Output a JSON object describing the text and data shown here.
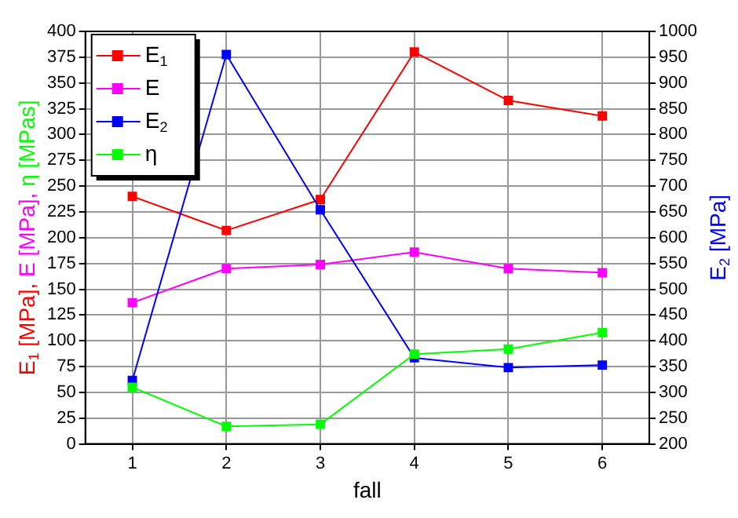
{
  "chart_data": {
    "type": "line",
    "xlabel": "fall",
    "ylabel": "E$_{1}$ [MPa], E [MPa], η [MPas]",
    "y2label": "E$_{2}$ [MPa]",
    "x": [
      1,
      2,
      3,
      4,
      5,
      6
    ],
    "xlim": [
      0.5,
      6.5
    ],
    "xticks": [
      1,
      2,
      3,
      4,
      5,
      6
    ],
    "ylim": [
      0,
      400
    ],
    "yticks": [
      0,
      25,
      50,
      75,
      100,
      125,
      150,
      175,
      200,
      225,
      250,
      275,
      300,
      325,
      350,
      375,
      400
    ],
    "y2lim": [
      200,
      1000
    ],
    "y2ticks": [
      200,
      250,
      300,
      350,
      400,
      450,
      500,
      550,
      600,
      650,
      700,
      750,
      800,
      850,
      900,
      950,
      1000
    ],
    "series": [
      {
        "name": "E$_{1}$",
        "color": "#ff0000",
        "values": [
          240,
          207,
          237,
          380,
          333,
          318
        ]
      },
      {
        "name": "E",
        "color": "#ff00ff",
        "values": [
          137,
          170,
          174,
          186,
          170,
          166
        ]
      },
      {
        "name": "E$_{2}$",
        "color": "#0000ff",
        "axis": "y2",
        "values": [
          323,
          955,
          654,
          367,
          348,
          353
        ]
      },
      {
        "name": "η",
        "color": "#00ff00",
        "values": [
          55,
          17,
          19,
          87,
          92,
          108
        ]
      }
    ],
    "grid": true,
    "legend": "top left",
    "marker": "square",
    "line_style": "solid"
  }
}
